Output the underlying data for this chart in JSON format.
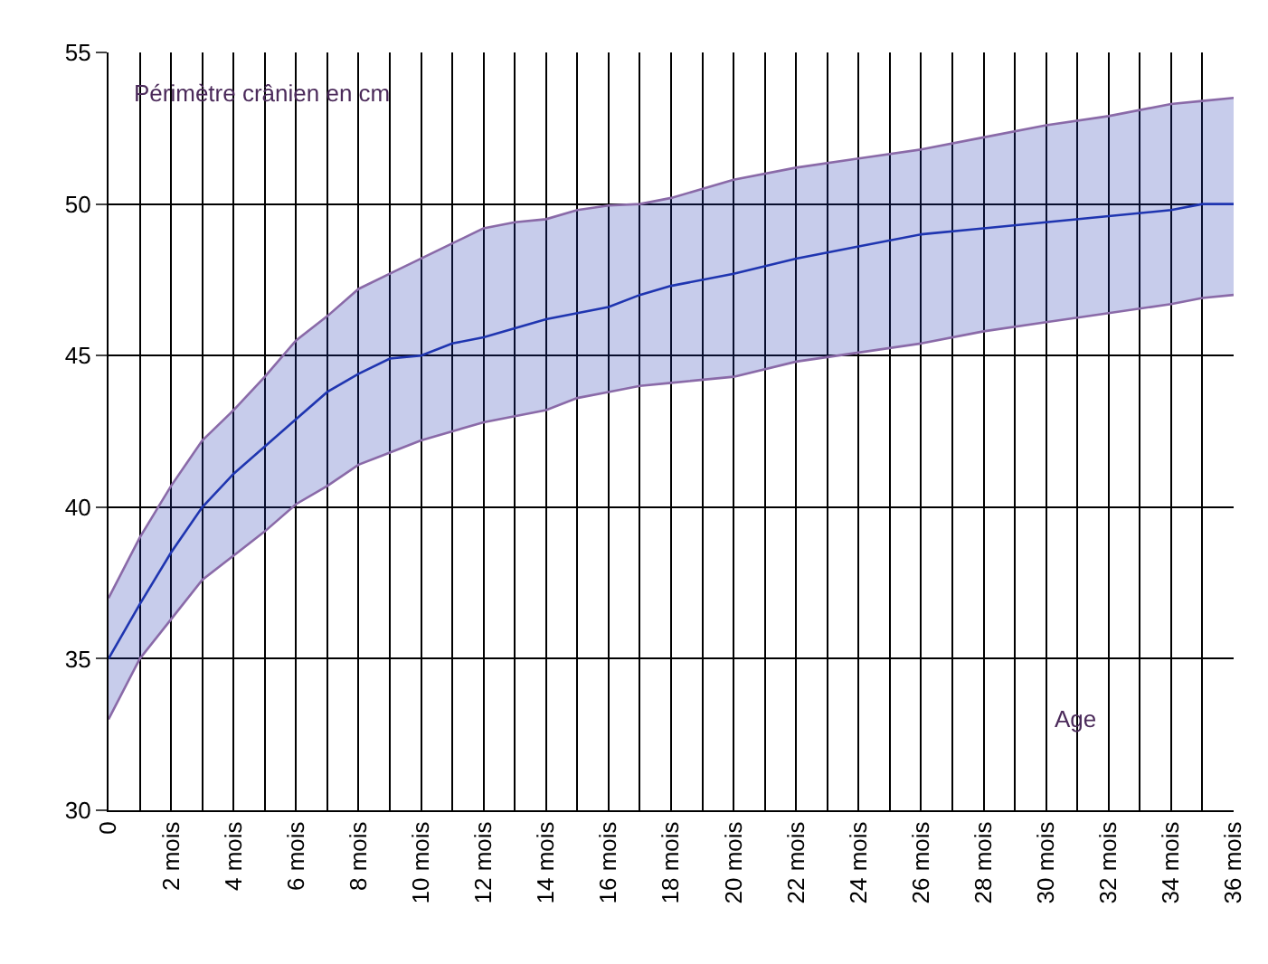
{
  "chart_data": {
    "type": "line",
    "x": [
      0,
      1,
      2,
      3,
      4,
      5,
      6,
      7,
      8,
      9,
      10,
      11,
      12,
      13,
      14,
      15,
      16,
      17,
      18,
      20,
      22,
      24,
      26,
      28,
      30,
      32,
      34,
      35,
      36
    ],
    "series": [
      {
        "color": "#8a6aa8",
        "values": [
          33.0,
          35.0,
          36.3,
          37.6,
          38.4,
          39.2,
          40.1,
          40.7,
          41.4,
          41.8,
          42.2,
          42.5,
          42.8,
          43.0,
          43.2,
          43.6,
          43.8,
          44.0,
          44.1,
          44.3,
          44.8,
          45.1,
          45.4,
          45.8,
          46.1,
          46.4,
          46.7,
          46.9,
          47.0
        ]
      },
      {
        "color": "#8a6aa8",
        "values": [
          37.0,
          39.0,
          40.7,
          42.2,
          43.2,
          44.3,
          45.5,
          46.3,
          47.2,
          47.7,
          48.2,
          48.7,
          49.2,
          49.4,
          49.5,
          49.8,
          49.95,
          50.0,
          50.2,
          50.8,
          51.2,
          51.5,
          51.8,
          52.2,
          52.6,
          52.9,
          53.3,
          53.4,
          53.5
        ]
      },
      {
        "color": "#1f35b0",
        "lower": [
          33.0,
          35.0,
          36.3,
          37.6,
          38.4,
          39.2,
          40.1,
          40.7,
          41.4,
          41.8,
          42.2,
          42.5,
          42.8,
          43.0,
          43.2,
          43.6,
          43.8,
          44.0,
          44.1,
          44.3,
          44.8,
          45.1,
          45.4,
          45.8,
          46.1,
          46.4,
          46.7,
          46.9,
          47.0
        ],
        "upper": [
          37.0,
          39.0,
          40.7,
          42.2,
          43.2,
          44.3,
          45.5,
          46.3,
          47.2,
          47.7,
          48.2,
          48.7,
          49.2,
          49.4,
          49.5,
          49.8,
          49.95,
          50.0,
          50.2,
          50.8,
          51.2,
          51.5,
          51.8,
          52.2,
          52.6,
          52.9,
          53.3,
          53.4,
          53.5
        ],
        "values": [
          35.0,
          36.8,
          38.5,
          40.0,
          41.1,
          42.0,
          42.9,
          43.8,
          44.4,
          44.9,
          45.0,
          45.4,
          45.6,
          45.9,
          46.2,
          46.4,
          46.6,
          47.0,
          47.3,
          47.7,
          48.2,
          48.6,
          49.0,
          49.2,
          49.4,
          49.6,
          49.8,
          50.0,
          50.0
        ]
      }
    ],
    "xlim": [
      0,
      36
    ],
    "xticks": [
      0,
      {
        "value": 1,
        "label": null
      },
      {
        "value": 2,
        "label": "2 mois"
      },
      {
        "value": 3,
        "label": null
      },
      {
        "value": 4,
        "label": "4 mois"
      },
      {
        "value": 5,
        "label": null
      },
      {
        "value": 6,
        "label": "6 mois"
      },
      {
        "value": 7,
        "label": null
      },
      {
        "value": 8,
        "label": "8 mois"
      },
      {
        "value": 9,
        "label": null
      },
      {
        "value": 10,
        "label": "10 mois"
      },
      {
        "value": 11,
        "label": null
      },
      {
        "value": 12,
        "label": "12 mois"
      },
      {
        "value": 13,
        "label": null
      },
      {
        "value": 14,
        "label": "14 mois"
      },
      {
        "value": 15,
        "label": null
      },
      {
        "value": 16,
        "label": "16 mois"
      },
      {
        "value": 17,
        "label": null
      },
      {
        "value": 18,
        "label": "18 mois"
      },
      {
        "value": 19,
        "label": null
      },
      {
        "value": 20,
        "label": "20 mois"
      },
      {
        "value": 21,
        "label": null
      },
      {
        "value": 22,
        "label": "22 mois"
      },
      {
        "value": 23,
        "label": null
      },
      {
        "value": 24,
        "label": "24 mois"
      },
      {
        "value": 25,
        "label": null
      },
      {
        "value": 26,
        "label": "26 mois"
      },
      {
        "value": 27,
        "label": null
      },
      {
        "value": 28,
        "label": "28 mois"
      },
      {
        "value": 29,
        "label": null
      },
      {
        "value": 30,
        "label": "30 mois"
      },
      {
        "value": 31,
        "label": null
      },
      {
        "value": 32,
        "label": "32 mois"
      },
      {
        "value": 33,
        "label": null
      },
      {
        "value": 34,
        "label": "34 mois"
      },
      {
        "value": 35,
        "label": null
      },
      {
        "value": 36,
        "label": "36 mois"
      }
    ],
    "ylim": [
      30,
      55
    ],
    "yticks": [
      30,
      35,
      40,
      45,
      50,
      55
    ],
    "grid": true,
    "marker": "none",
    "line_style": "solid",
    "annotations": [
      "Périmètre crânien en cm",
      "Age"
    ]
  }
}
